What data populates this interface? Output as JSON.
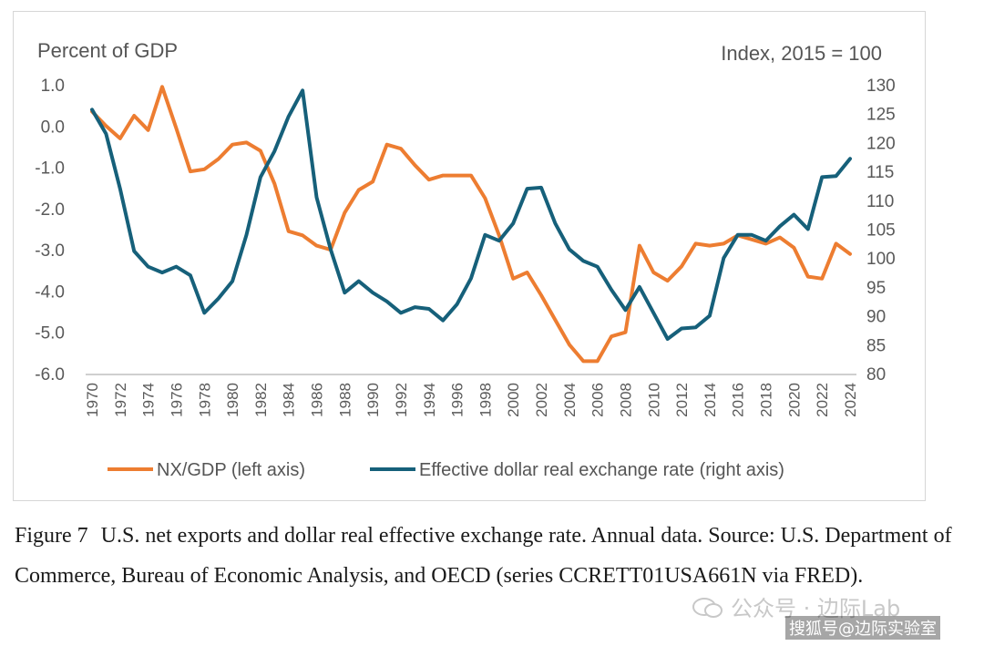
{
  "chart_data": {
    "type": "line",
    "left_axis_title": "Percent of GDP",
    "right_axis_title": "Index, 2015 = 100",
    "left_ylim": [
      -6.0,
      1.0
    ],
    "left_ticks": [
      "1.0",
      "0.0",
      "-1.0",
      "-2.0",
      "-3.0",
      "-4.0",
      "-5.0",
      "-6.0"
    ],
    "right_ylim": [
      80,
      130
    ],
    "right_ticks": [
      "130",
      "125",
      "120",
      "115",
      "110",
      "105",
      "100",
      "95",
      "90",
      "85",
      "80"
    ],
    "x": [
      1970,
      1971,
      1972,
      1973,
      1974,
      1975,
      1976,
      1977,
      1978,
      1979,
      1980,
      1981,
      1982,
      1983,
      1984,
      1985,
      1986,
      1987,
      1988,
      1989,
      1990,
      1991,
      1992,
      1993,
      1994,
      1995,
      1996,
      1997,
      1998,
      1999,
      2000,
      2001,
      2002,
      2003,
      2004,
      2005,
      2006,
      2007,
      2008,
      2009,
      2010,
      2011,
      2012,
      2013,
      2014,
      2015,
      2016,
      2017,
      2018,
      2019,
      2020,
      2021,
      2022,
      2023,
      2024
    ],
    "x_tick_labels": [
      "1970",
      "1972",
      "1974",
      "1976",
      "1978",
      "1980",
      "1982",
      "1984",
      "1986",
      "1988",
      "1990",
      "1992",
      "1994",
      "1996",
      "1998",
      "2000",
      "2002",
      "2004",
      "2006",
      "2008",
      "2010",
      "2012",
      "2014",
      "2016",
      "2018",
      "2020",
      "2022",
      "2024"
    ],
    "series": [
      {
        "name": "NX/GDP (left axis)",
        "axis": "left",
        "color": "#ED7D31",
        "values": [
          0.35,
          0.0,
          -0.3,
          0.25,
          -0.1,
          0.95,
          -0.05,
          -1.1,
          -1.05,
          -0.8,
          -0.45,
          -0.4,
          -0.6,
          -1.4,
          -2.55,
          -2.65,
          -2.9,
          -3.0,
          -2.1,
          -1.55,
          -1.35,
          -0.45,
          -0.55,
          -0.95,
          -1.3,
          -1.2,
          -1.2,
          -1.2,
          -1.75,
          -2.65,
          -3.7,
          -3.55,
          -4.1,
          -4.7,
          -5.3,
          -5.7,
          -5.7,
          -5.1,
          -5.0,
          -2.9,
          -3.55,
          -3.75,
          -3.4,
          -2.85,
          -2.9,
          -2.85,
          -2.65,
          -2.75,
          -2.85,
          -2.7,
          -2.95,
          -3.65,
          -3.7,
          -2.85,
          -3.1
        ]
      },
      {
        "name": "Effective dollar real exchange rate (right axis)",
        "axis": "right",
        "color": "#16607A",
        "values": [
          125.7,
          121.5,
          112.0,
          101.2,
          98.5,
          97.5,
          98.5,
          97.0,
          90.5,
          93.0,
          96.0,
          104.0,
          114.0,
          118.5,
          124.5,
          129.0,
          110.5,
          101.5,
          94.0,
          96.0,
          94.0,
          92.5,
          90.5,
          91.5,
          91.2,
          89.2,
          92.0,
          96.5,
          104.0,
          103.0,
          106.0,
          112.0,
          112.2,
          106.0,
          101.5,
          99.5,
          98.5,
          94.5,
          91.0,
          95.0,
          90.5,
          86.0,
          87.8,
          88.0,
          90.0,
          100.0,
          104.0,
          104.0,
          103.0,
          105.5,
          107.5,
          105.0,
          114.0,
          114.2,
          117.2
        ]
      }
    ],
    "legend": "bottom",
    "grid": false
  },
  "caption": {
    "label": "Figure 7",
    "text": "U.S. net exports and dollar real effective exchange rate. Annual data. Source: U.S. Department of Commerce, Bureau of Economic Analysis, and OECD (series CCRETT01USA661N via FRED)."
  },
  "watermark": {
    "text": "公众号 · 边际Lab",
    "source": "搜狐号@边际实验室"
  }
}
